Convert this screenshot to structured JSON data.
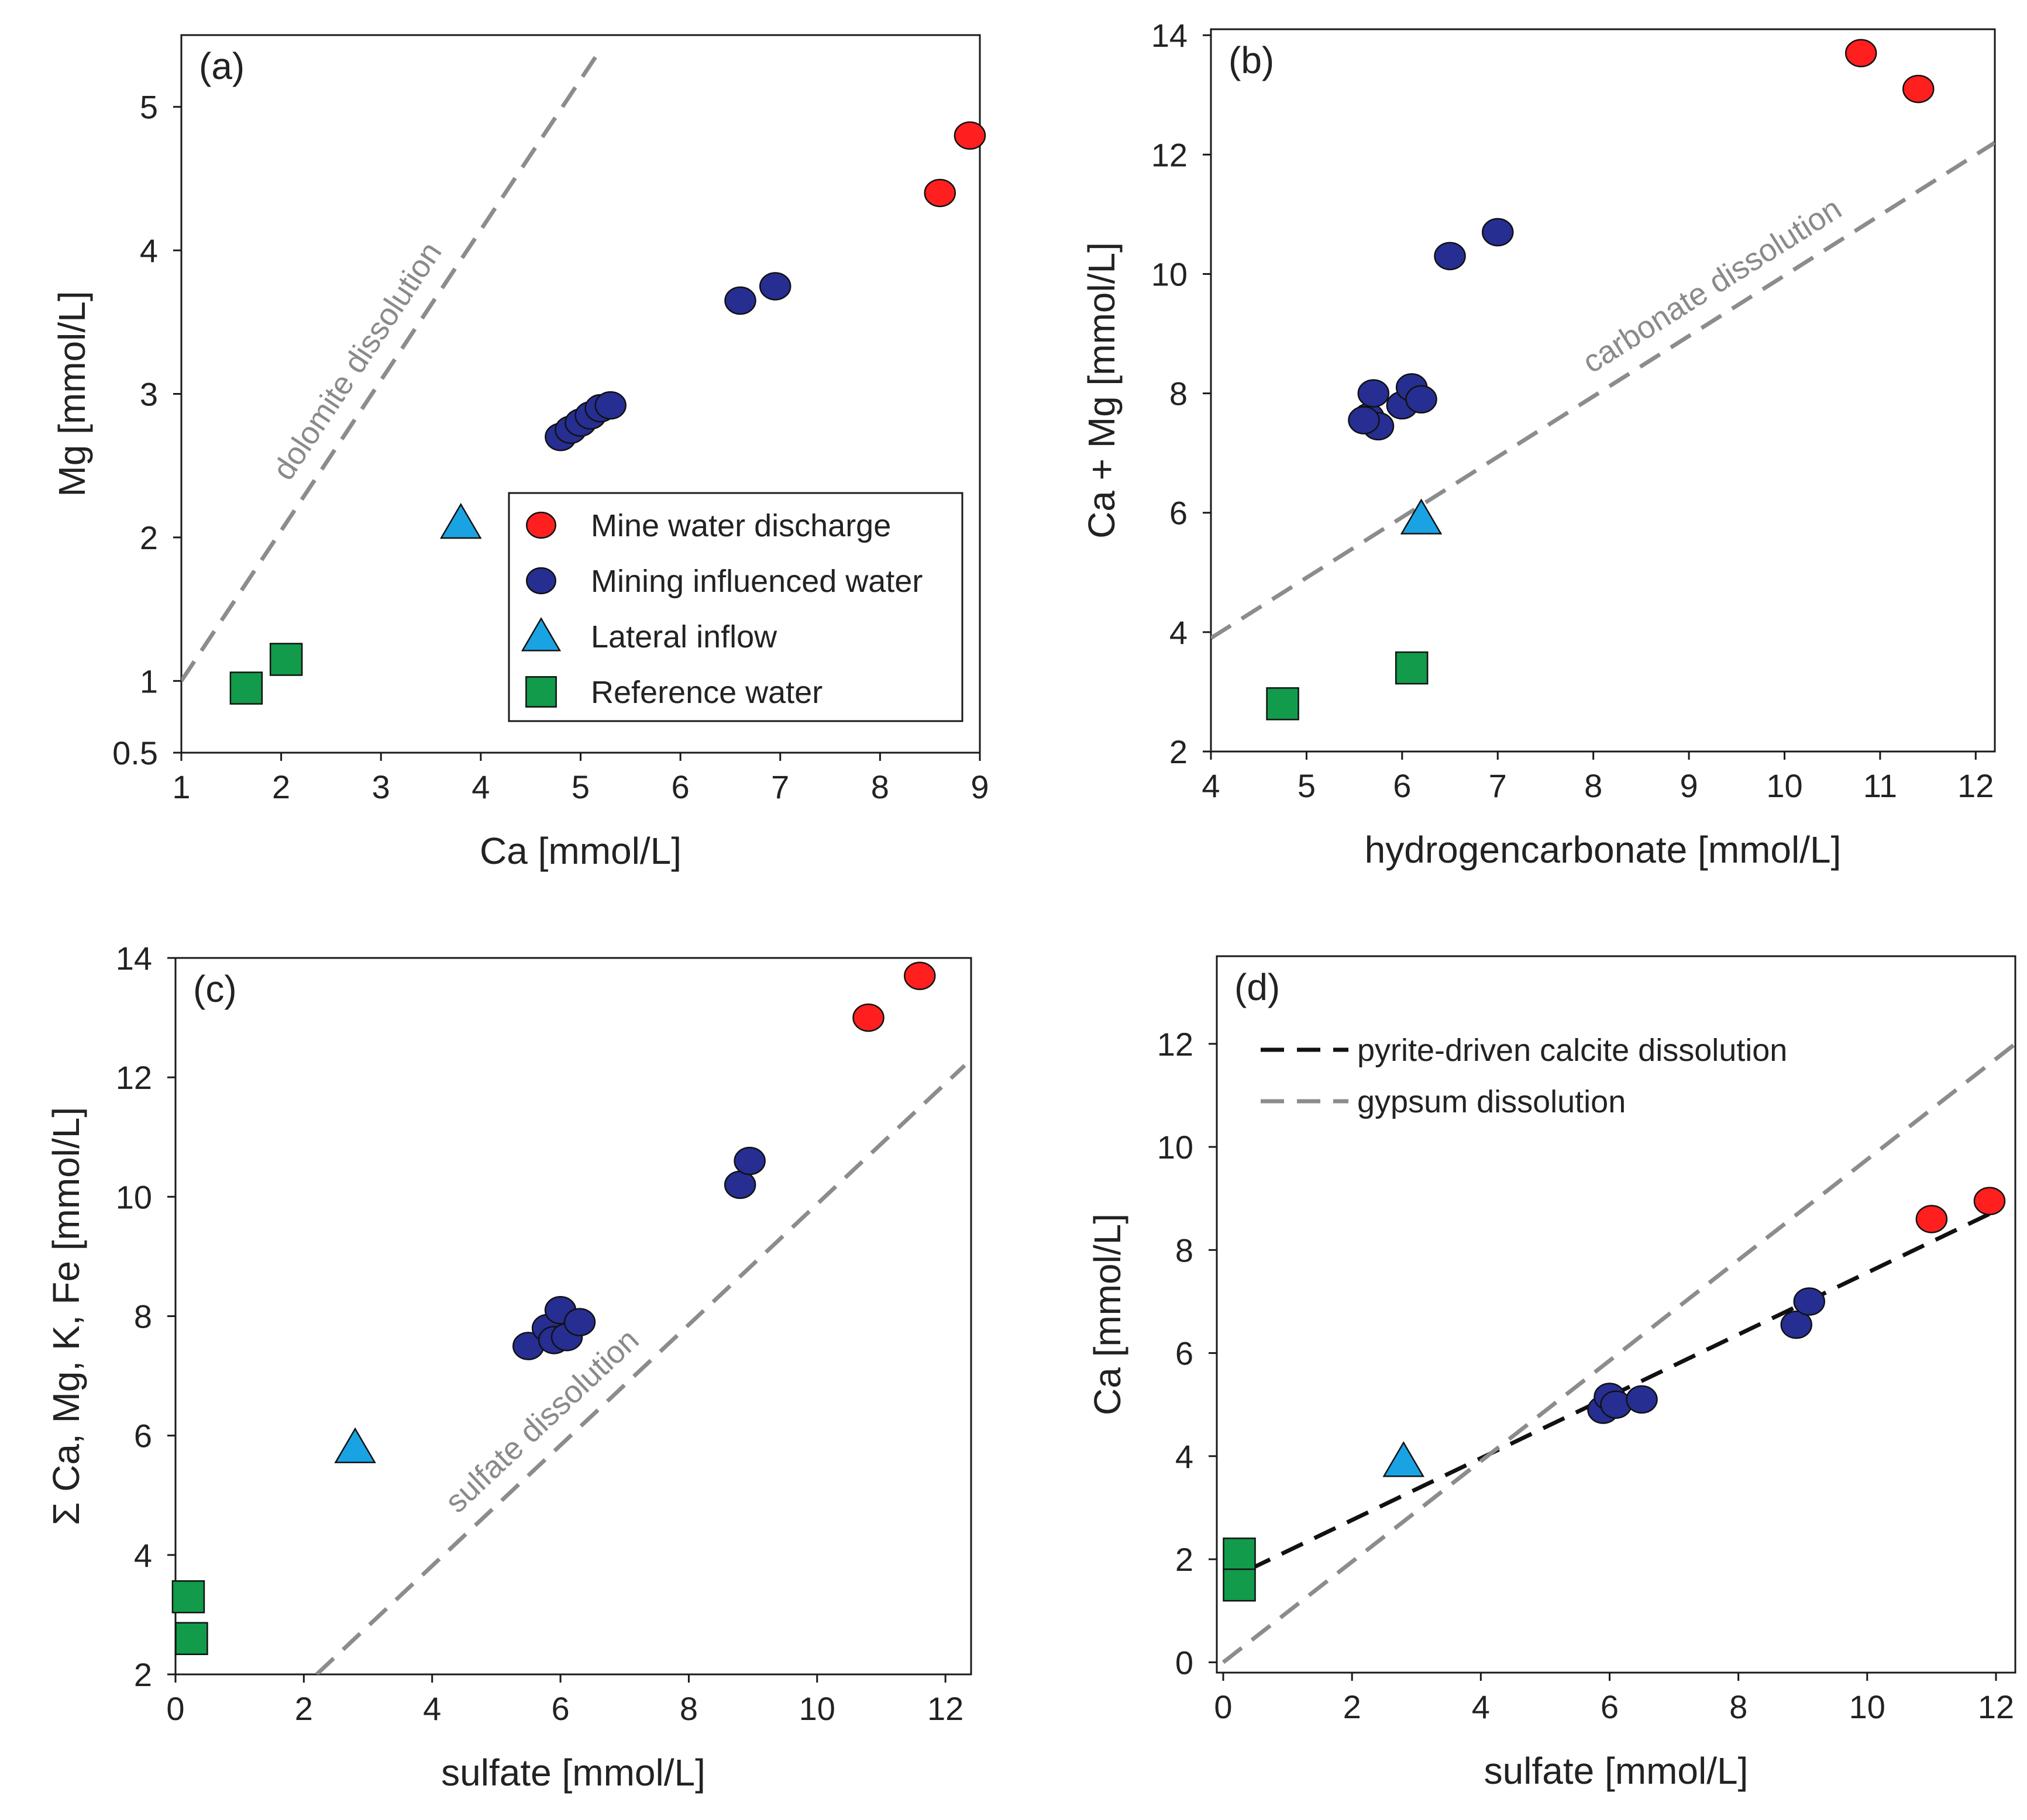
{
  "chart_data": [
    {
      "id": "a",
      "type": "scatter",
      "panel_label": "(a)",
      "xlabel": "Ca [mmol/L]",
      "ylabel": "Mg [mmol/L]",
      "xlim": [
        1,
        9
      ],
      "ylim": [
        0.5,
        5.5
      ],
      "x_ticks": [
        1,
        2,
        3,
        4,
        5,
        6,
        7,
        8,
        9
      ],
      "y_ticks": [
        0.5,
        1,
        2,
        3,
        4,
        5
      ],
      "grid": false,
      "lines": [
        {
          "name": "dolomite dissolution",
          "x": [
            1,
            5.2
          ],
          "y": [
            1.0,
            5.4
          ],
          "color": "#8c8c8c"
        }
      ],
      "series": [
        {
          "name": "Mine water discharge",
          "marker": "circle",
          "color": "#ff1f1f",
          "points": [
            [
              8.6,
              4.4
            ],
            [
              8.9,
              4.8
            ]
          ]
        },
        {
          "name": "Mining influenced water",
          "marker": "circle",
          "color": "#262e91",
          "points": [
            [
              4.8,
              2.7
            ],
            [
              4.9,
              2.75
            ],
            [
              5.0,
              2.8
            ],
            [
              5.1,
              2.85
            ],
            [
              5.2,
              2.9
            ],
            [
              5.3,
              2.92
            ],
            [
              6.6,
              3.65
            ],
            [
              6.95,
              3.75
            ]
          ]
        },
        {
          "name": "Lateral inflow",
          "marker": "triangle",
          "color": "#1aa3e3",
          "points": [
            [
              3.8,
              2.1
            ]
          ]
        },
        {
          "name": "Reference water",
          "marker": "square",
          "color": "#119b4b",
          "points": [
            [
              1.65,
              0.95
            ],
            [
              2.05,
              1.15
            ]
          ]
        }
      ],
      "legend": {
        "position": "bottom-right",
        "entries": [
          {
            "label": "Mine water discharge",
            "marker": "circle",
            "color": "#ff1f1f"
          },
          {
            "label": "Mining influenced water",
            "marker": "circle",
            "color": "#262e91"
          },
          {
            "label": "Lateral inflow",
            "marker": "triangle",
            "color": "#1aa3e3"
          },
          {
            "label": "Reference water",
            "marker": "square",
            "color": "#119b4b"
          }
        ]
      }
    },
    {
      "id": "b",
      "type": "scatter",
      "panel_label": "(b)",
      "xlabel": "hydrogencarbonate [mmol/L]",
      "ylabel": "Ca + Mg [mmol/L]",
      "xlim": [
        4,
        12.2
      ],
      "ylim": [
        2,
        14.1
      ],
      "x_ticks": [
        4,
        5,
        6,
        7,
        8,
        9,
        10,
        11,
        12
      ],
      "y_ticks": [
        2,
        4,
        6,
        8,
        10,
        12,
        14
      ],
      "grid": false,
      "lines": [
        {
          "name": "carbonate dissolution",
          "x": [
            4,
            12.2
          ],
          "y": [
            3.9,
            12.2
          ],
          "color": "#8c8c8c"
        }
      ],
      "series": [
        {
          "name": "Mine water discharge",
          "marker": "circle",
          "color": "#ff1f1f",
          "points": [
            [
              10.8,
              13.7
            ],
            [
              11.4,
              13.1
            ]
          ]
        },
        {
          "name": "Mining influenced water",
          "marker": "circle",
          "color": "#262e91",
          "points": [
            [
              5.65,
              7.6
            ],
            [
              5.75,
              7.45
            ],
            [
              5.7,
              8.0
            ],
            [
              5.6,
              7.55
            ],
            [
              6.0,
              7.8
            ],
            [
              6.1,
              8.1
            ],
            [
              6.2,
              7.9
            ],
            [
              6.5,
              10.3
            ],
            [
              7.0,
              10.7
            ]
          ]
        },
        {
          "name": "Lateral inflow",
          "marker": "triangle",
          "color": "#1aa3e3",
          "points": [
            [
              6.2,
              5.9
            ]
          ]
        },
        {
          "name": "Reference water",
          "marker": "square",
          "color": "#119b4b",
          "points": [
            [
              4.75,
              2.8
            ],
            [
              6.1,
              3.4
            ]
          ]
        }
      ]
    },
    {
      "id": "c",
      "type": "scatter",
      "panel_label": "(c)",
      "xlabel": "sulfate [mmol/L]",
      "ylabel": "Σ Ca, Mg, K, Fe [mmol/L]",
      "xlim": [
        0,
        12.4
      ],
      "ylim": [
        2,
        14
      ],
      "x_ticks": [
        0,
        2,
        4,
        6,
        8,
        10,
        12
      ],
      "y_ticks": [
        2,
        4,
        6,
        8,
        10,
        12,
        14
      ],
      "grid": false,
      "lines": [
        {
          "name": "sulfate dissolution",
          "x": [
            2.2,
            12.3
          ],
          "y": [
            2.0,
            12.2
          ],
          "color": "#8c8c8c"
        }
      ],
      "series": [
        {
          "name": "Mine water discharge",
          "marker": "circle",
          "color": "#ff1f1f",
          "points": [
            [
              10.8,
              13.0
            ],
            [
              11.6,
              13.7
            ]
          ]
        },
        {
          "name": "Mining influenced water",
          "marker": "circle",
          "color": "#262e91",
          "points": [
            [
              5.5,
              7.5
            ],
            [
              5.8,
              7.8
            ],
            [
              5.9,
              7.6
            ],
            [
              6.0,
              8.1
            ],
            [
              6.1,
              7.65
            ],
            [
              6.3,
              7.9
            ],
            [
              8.8,
              10.2
            ],
            [
              8.95,
              10.6
            ]
          ]
        },
        {
          "name": "Lateral inflow",
          "marker": "triangle",
          "color": "#1aa3e3",
          "points": [
            [
              2.8,
              5.8
            ]
          ]
        },
        {
          "name": "Reference water",
          "marker": "square",
          "color": "#119b4b",
          "points": [
            [
              0.2,
              3.3
            ],
            [
              0.25,
              2.6
            ]
          ]
        }
      ]
    },
    {
      "id": "d",
      "type": "scatter",
      "panel_label": "(d)",
      "xlabel": "sulfate [mmol/L]",
      "ylabel": "Ca [mmol/L]",
      "xlim": [
        -0.1,
        12.3
      ],
      "ylim": [
        -0.2,
        13.7
      ],
      "x_ticks": [
        0,
        2,
        4,
        6,
        8,
        10,
        12
      ],
      "y_ticks": [
        0,
        2,
        4,
        6,
        8,
        10,
        12
      ],
      "grid": false,
      "lines": [
        {
          "name": "pyrite-driven calcite dissolution",
          "x": [
            0.4,
            11.9
          ],
          "y": [
            1.8,
            8.7
          ],
          "color": "#111111"
        },
        {
          "name": "gypsum dissolution",
          "x": [
            0,
            12.3
          ],
          "y": [
            0,
            12.0
          ],
          "color": "#8c8c8c"
        }
      ],
      "series": [
        {
          "name": "Mine water discharge",
          "marker": "circle",
          "color": "#ff1f1f",
          "points": [
            [
              11.0,
              8.6
            ],
            [
              11.9,
              8.95
            ]
          ]
        },
        {
          "name": "Mining influenced water",
          "marker": "circle",
          "color": "#262e91",
          "points": [
            [
              5.9,
              4.9
            ],
            [
              6.0,
              5.15
            ],
            [
              6.1,
              5.0
            ],
            [
              6.5,
              5.1
            ],
            [
              8.9,
              6.55
            ],
            [
              9.1,
              7.0
            ]
          ]
        },
        {
          "name": "Lateral inflow",
          "marker": "triangle",
          "color": "#1aa3e3",
          "points": [
            [
              2.8,
              3.9
            ]
          ]
        },
        {
          "name": "Reference water",
          "marker": "square",
          "color": "#119b4b",
          "points": [
            [
              0.25,
              2.1
            ],
            [
              0.25,
              1.5
            ]
          ]
        }
      ],
      "legend": {
        "position": "top-left",
        "entries": [
          {
            "label": "pyrite-driven calcite dissolution",
            "style": "dashed",
            "color": "#111111"
          },
          {
            "label": "gypsum dissolution",
            "style": "dashed",
            "color": "#8c8c8c"
          }
        ]
      }
    }
  ]
}
